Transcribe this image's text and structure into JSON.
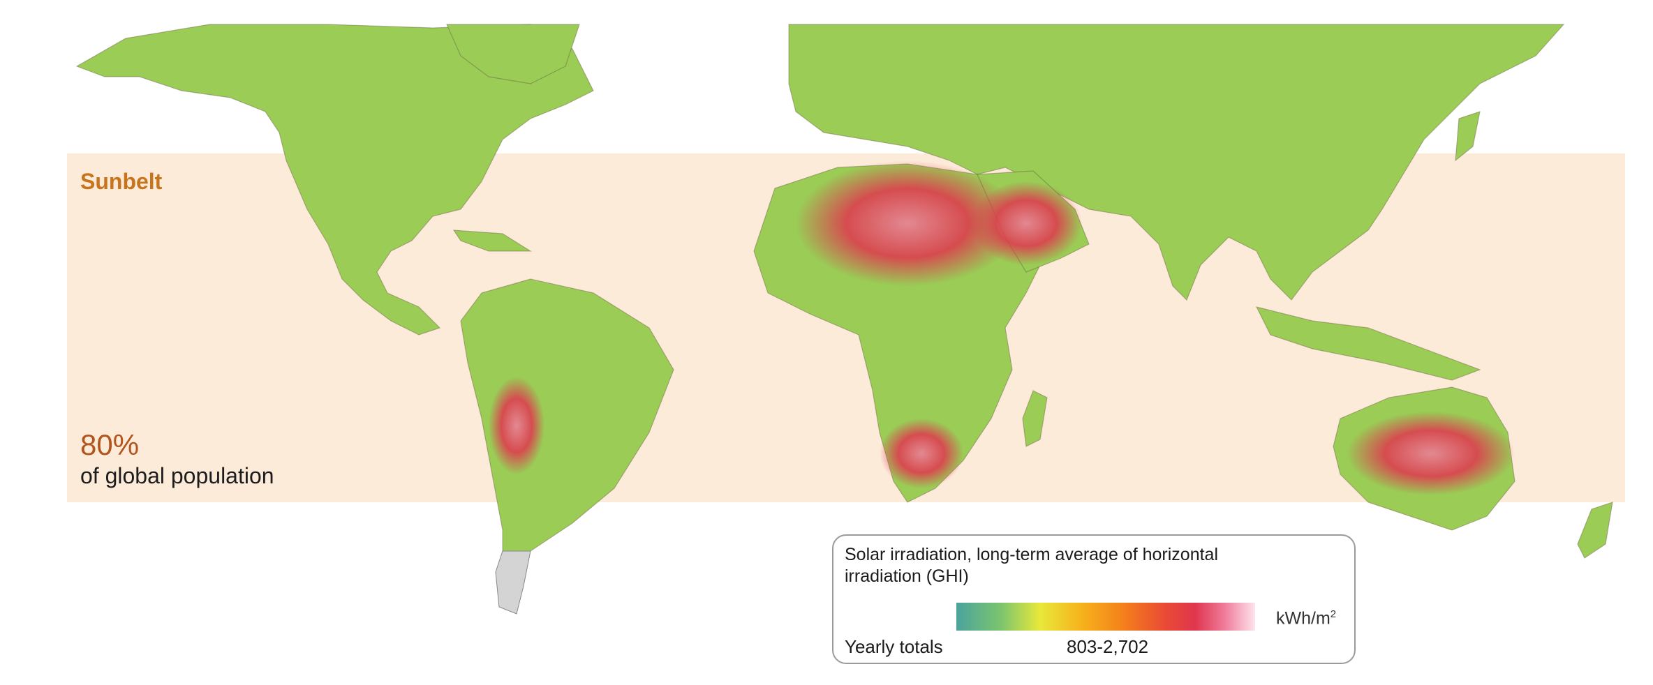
{
  "colors": {
    "sunbelt_band": "#fdebd9",
    "sunbelt_text": "#c8741c",
    "population_value": "#b2541d",
    "legend_border": "#9a9a9a",
    "scale": [
      "#4aa39d",
      "#7cc56e",
      "#e8e83a",
      "#f6b21c",
      "#f4801b",
      "#e94a35",
      "#e0364e",
      "#f07d9c",
      "#fde4ec"
    ]
  },
  "band": {
    "label": "Sunbelt"
  },
  "population": {
    "value": "80%",
    "label": "of global population"
  },
  "legend": {
    "title": "Solar irradiation, long-term average of horizontal irradiation (GHI)",
    "unit_base": "kWh/m",
    "unit_sup": "2",
    "yearly_label": "Yearly totals",
    "range": "803-2,702"
  }
}
